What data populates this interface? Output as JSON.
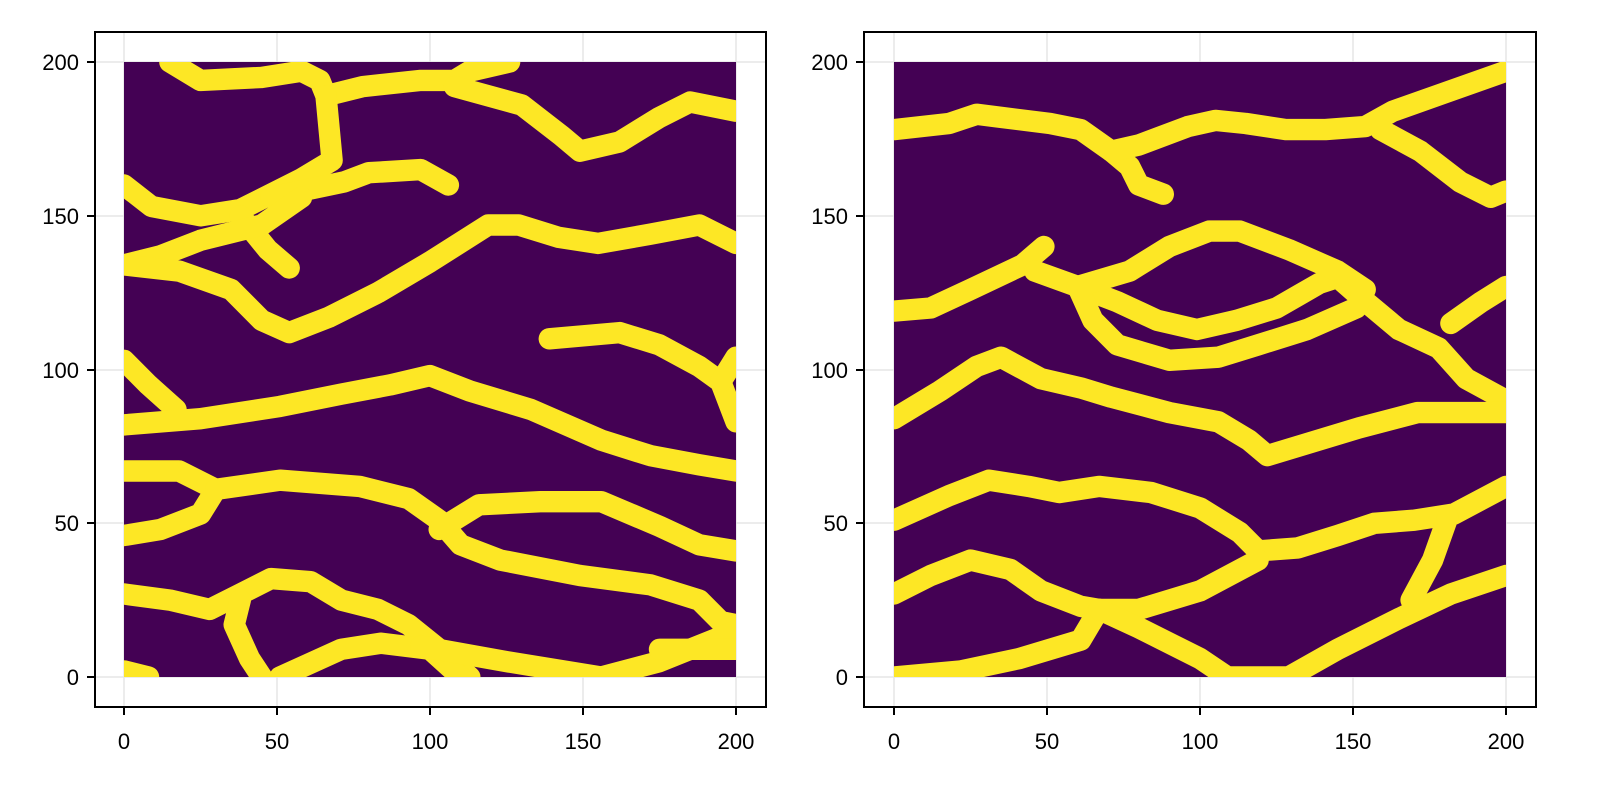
{
  "chart_data": [
    {
      "type": "heatmap",
      "title": "",
      "xlabel": "",
      "ylabel": "",
      "xlim": [
        -10,
        210
      ],
      "ylim": [
        -10,
        210
      ],
      "xticks": [
        "0",
        "50",
        "100",
        "150",
        "200"
      ],
      "yticks": [
        "0",
        "50",
        "100",
        "150",
        "200"
      ],
      "grid": true,
      "colormap": "viridis (binary)",
      "values_description": "binary 200x200 field; background 0 (#440154), channels 1 (#FDE725)",
      "channel_width": 7,
      "channels": [
        [
          [
            15,
            200
          ],
          [
            25,
            194
          ],
          [
            45,
            195
          ],
          [
            58,
            197
          ],
          [
            64,
            194
          ],
          [
            66,
            189
          ],
          [
            78,
            192
          ],
          [
            97,
            194
          ],
          [
            108,
            194
          ],
          [
            113,
            197
          ],
          [
            126,
            200
          ]
        ],
        [
          [
            108,
            192
          ],
          [
            130,
            186
          ],
          [
            143,
            176
          ],
          [
            149,
            171
          ],
          [
            162,
            174
          ],
          [
            175,
            182
          ],
          [
            185,
            187
          ],
          [
            200,
            184
          ]
        ],
        [
          [
            0,
            160
          ],
          [
            9,
            153
          ],
          [
            25,
            150
          ],
          [
            38,
            152
          ],
          [
            58,
            162
          ],
          [
            68,
            168
          ],
          [
            66,
            189
          ]
        ],
        [
          [
            38,
            150
          ],
          [
            47,
            139
          ],
          [
            54,
            133
          ]
        ],
        [
          [
            48,
            156
          ],
          [
            72,
            161
          ],
          [
            80,
            164
          ],
          [
            97,
            165
          ],
          [
            106,
            160
          ]
        ],
        [
          [
            0,
            134
          ],
          [
            12,
            137
          ],
          [
            25,
            142
          ],
          [
            45,
            147
          ],
          [
            58,
            156
          ]
        ],
        [
          [
            0,
            134
          ],
          [
            18,
            132
          ],
          [
            35,
            126
          ],
          [
            45,
            116
          ],
          [
            54,
            112
          ],
          [
            67,
            117
          ],
          [
            83,
            125
          ],
          [
            100,
            135
          ],
          [
            119,
            147
          ],
          [
            129,
            147
          ],
          [
            142,
            143
          ],
          [
            155,
            141
          ],
          [
            172,
            144
          ],
          [
            188,
            147
          ],
          [
            200,
            141
          ]
        ],
        [
          [
            139,
            110
          ],
          [
            162,
            112
          ],
          [
            175,
            108
          ],
          [
            188,
            101
          ],
          [
            195,
            96
          ],
          [
            200,
            83
          ]
        ],
        [
          [
            195,
            96
          ],
          [
            200,
            104
          ]
        ],
        [
          [
            0,
            103
          ],
          [
            8,
            95
          ],
          [
            17,
            87
          ]
        ],
        [
          [
            0,
            82
          ],
          [
            25,
            84
          ],
          [
            51,
            88
          ],
          [
            71,
            92
          ],
          [
            87,
            95
          ],
          [
            100,
            98
          ],
          [
            113,
            93
          ],
          [
            133,
            87
          ],
          [
            156,
            77
          ],
          [
            172,
            72
          ],
          [
            188,
            69
          ],
          [
            200,
            67
          ]
        ],
        [
          [
            0,
            67
          ],
          [
            18,
            67
          ],
          [
            30,
            61
          ],
          [
            25,
            53
          ],
          [
            12,
            48
          ],
          [
            0,
            46
          ]
        ],
        [
          [
            30,
            61
          ],
          [
            51,
            64
          ],
          [
            77,
            62
          ],
          [
            93,
            58
          ],
          [
            103,
            51
          ],
          [
            110,
            43
          ],
          [
            123,
            38
          ],
          [
            149,
            33
          ],
          [
            172,
            30
          ],
          [
            188,
            25
          ],
          [
            195,
            18
          ],
          [
            200,
            17
          ]
        ],
        [
          [
            103,
            48
          ],
          [
            116,
            56
          ],
          [
            136,
            57
          ],
          [
            156,
            57
          ],
          [
            175,
            49
          ],
          [
            188,
            43
          ],
          [
            200,
            41
          ]
        ],
        [
          [
            0,
            27
          ],
          [
            15,
            25
          ],
          [
            28,
            22
          ],
          [
            38,
            27
          ],
          [
            48,
            32
          ],
          [
            61,
            31
          ],
          [
            71,
            25
          ],
          [
            83,
            22
          ],
          [
            93,
            17
          ],
          [
            103,
            9
          ],
          [
            113,
            0
          ]
        ],
        [
          [
            38,
            25
          ],
          [
            36,
            17
          ],
          [
            41,
            6
          ],
          [
            45,
            0
          ]
        ],
        [
          [
            0,
            2
          ],
          [
            8,
            0
          ]
        ],
        [
          [
            51,
            0
          ],
          [
            71,
            9
          ],
          [
            84,
            11
          ],
          [
            100,
            9
          ],
          [
            110,
            0
          ]
        ],
        [
          [
            97,
            10
          ],
          [
            125,
            5
          ],
          [
            156,
            0
          ]
        ],
        [
          [
            156,
            0
          ],
          [
            175,
            5
          ],
          [
            200,
            15
          ]
        ],
        [
          [
            175,
            9
          ],
          [
            200,
            9
          ]
        ]
      ]
    },
    {
      "type": "heatmap",
      "title": "",
      "xlabel": "",
      "ylabel": "",
      "xlim": [
        -10,
        210
      ],
      "ylim": [
        -10,
        210
      ],
      "xticks": [
        "0",
        "50",
        "100",
        "150",
        "200"
      ],
      "yticks": [
        "0",
        "50",
        "100",
        "150",
        "200"
      ],
      "grid": true,
      "colormap": "viridis (binary)",
      "values_description": "binary 200x200 field; background 0 (#440154), channels 1 (#FDE725)",
      "channel_width": 7,
      "channels": [
        [
          [
            0,
            178
          ],
          [
            18,
            180
          ],
          [
            27,
            183
          ],
          [
            35,
            182
          ],
          [
            51,
            180
          ],
          [
            61,
            178
          ],
          [
            71,
            171
          ],
          [
            77,
            166
          ],
          [
            80,
            160
          ],
          [
            88,
            157
          ]
        ],
        [
          [
            71,
            171
          ],
          [
            80,
            173
          ],
          [
            96,
            179
          ],
          [
            105,
            181
          ],
          [
            115,
            180
          ],
          [
            128,
            178
          ],
          [
            141,
            178
          ],
          [
            154,
            179
          ],
          [
            163,
            184
          ],
          [
            180,
            190
          ],
          [
            200,
            197
          ]
        ],
        [
          [
            159,
            178
          ],
          [
            172,
            171
          ],
          [
            185,
            161
          ],
          [
            195,
            156
          ],
          [
            200,
            158
          ]
        ],
        [
          [
            0,
            119
          ],
          [
            12,
            120
          ],
          [
            25,
            126
          ],
          [
            42,
            134
          ],
          [
            49,
            140
          ]
        ],
        [
          [
            46,
            132
          ],
          [
            60,
            127
          ],
          [
            73,
            122
          ],
          [
            86,
            116
          ],
          [
            99,
            113
          ],
          [
            112,
            116
          ],
          [
            125,
            120
          ],
          [
            132,
            124
          ],
          [
            139,
            128
          ],
          [
            145,
            130
          ],
          [
            153,
            123
          ],
          [
            165,
            113
          ],
          [
            178,
            107
          ],
          [
            187,
            97
          ],
          [
            200,
            90
          ]
        ],
        [
          [
            60,
            127
          ],
          [
            65,
            116
          ],
          [
            73,
            108
          ],
          [
            90,
            103
          ],
          [
            106,
            104
          ],
          [
            119,
            108
          ],
          [
            135,
            113
          ],
          [
            151,
            120
          ],
          [
            154,
            126
          ],
          [
            145,
            132
          ],
          [
            129,
            139
          ],
          [
            113,
            145
          ],
          [
            103,
            145
          ],
          [
            90,
            140
          ],
          [
            77,
            132
          ],
          [
            60,
            127
          ]
        ],
        [
          [
            182,
            115
          ],
          [
            192,
            122
          ],
          [
            200,
            127
          ]
        ],
        [
          [
            0,
            84
          ],
          [
            15,
            93
          ],
          [
            27,
            101
          ],
          [
            35,
            104
          ],
          [
            48,
            97
          ],
          [
            61,
            94
          ],
          [
            71,
            91
          ],
          [
            90,
            86
          ],
          [
            106,
            83
          ],
          [
            116,
            77
          ],
          [
            122,
            72
          ],
          [
            132,
            75
          ],
          [
            152,
            81
          ],
          [
            171,
            86
          ],
          [
            200,
            86
          ]
        ],
        [
          [
            0,
            51
          ],
          [
            18,
            59
          ],
          [
            31,
            64
          ],
          [
            44,
            62
          ],
          [
            54,
            60
          ],
          [
            67,
            62
          ],
          [
            84,
            60
          ],
          [
            100,
            55
          ],
          [
            113,
            47
          ],
          [
            119,
            41
          ],
          [
            132,
            42
          ],
          [
            145,
            46
          ],
          [
            157,
            50
          ],
          [
            170,
            51
          ],
          [
            183,
            53
          ],
          [
            200,
            62
          ]
        ],
        [
          [
            181,
            52
          ],
          [
            176,
            38
          ],
          [
            169,
            25
          ]
        ],
        [
          [
            0,
            27
          ],
          [
            12,
            33
          ],
          [
            25,
            38
          ],
          [
            38,
            35
          ],
          [
            48,
            28
          ],
          [
            61,
            23
          ],
          [
            67,
            22
          ],
          [
            80,
            22
          ],
          [
            100,
            28
          ],
          [
            119,
            38
          ]
        ],
        [
          [
            67,
            22
          ],
          [
            61,
            12
          ],
          [
            41,
            6
          ],
          [
            22,
            2
          ],
          [
            0,
            0
          ]
        ],
        [
          [
            67,
            22
          ],
          [
            80,
            16
          ],
          [
            100,
            6
          ],
          [
            109,
            0
          ],
          [
            129,
            0
          ],
          [
            145,
            9
          ],
          [
            165,
            19
          ],
          [
            182,
            27
          ],
          [
            200,
            33
          ]
        ]
      ]
    }
  ],
  "colors": {
    "background": "#440154",
    "channel": "#FDE725",
    "grid": "#e5e5e5",
    "frame": "#000000"
  }
}
